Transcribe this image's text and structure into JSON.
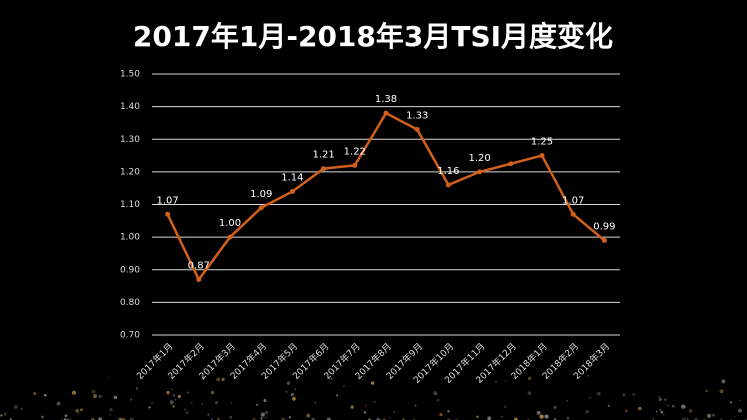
{
  "chart_data": {
    "type": "line",
    "title": "2017年1月-2018年3月TSI月度变化",
    "categories": [
      "2017年1月",
      "2017年2月",
      "2017年3月",
      "2017年4月",
      "2017年5月",
      "2017年6月",
      "2017年7月",
      "2017年8月",
      "2017年9月",
      "2017年10月",
      "2017年11月",
      "2017年12月",
      "2018年1月",
      "2018年2月",
      "2018年3月"
    ],
    "series": [
      {
        "name": "TSI",
        "color": "#d2601a",
        "values": [
          1.07,
          0.87,
          1.0,
          1.09,
          1.14,
          1.21,
          1.22,
          1.38,
          1.33,
          1.16,
          1.2,
          1.225,
          1.25,
          1.07,
          0.99
        ],
        "value_labels": [
          "1.07",
          "0.87",
          "1.00",
          "1.09",
          "1.14",
          "1.21",
          "1.22",
          "1.38",
          "1.33",
          "1.16",
          "1.20",
          null,
          "1.25",
          "1.07",
          "0.99"
        ]
      }
    ],
    "ylim": [
      0.7,
      1.5
    ],
    "yticks": [
      {
        "value": 0.7,
        "label": "0.70"
      },
      {
        "value": 0.8,
        "label": "0.80"
      },
      {
        "value": 0.9,
        "label": "0.90"
      },
      {
        "value": 1.0,
        "label": "1.00"
      },
      {
        "value": 1.1,
        "label": "1.10"
      },
      {
        "value": 1.2,
        "label": "1.20"
      },
      {
        "value": 1.3,
        "label": "1.30"
      },
      {
        "value": 1.4,
        "label": "1.40"
      },
      {
        "value": 1.5,
        "label": "1.50"
      }
    ],
    "grid": true
  }
}
